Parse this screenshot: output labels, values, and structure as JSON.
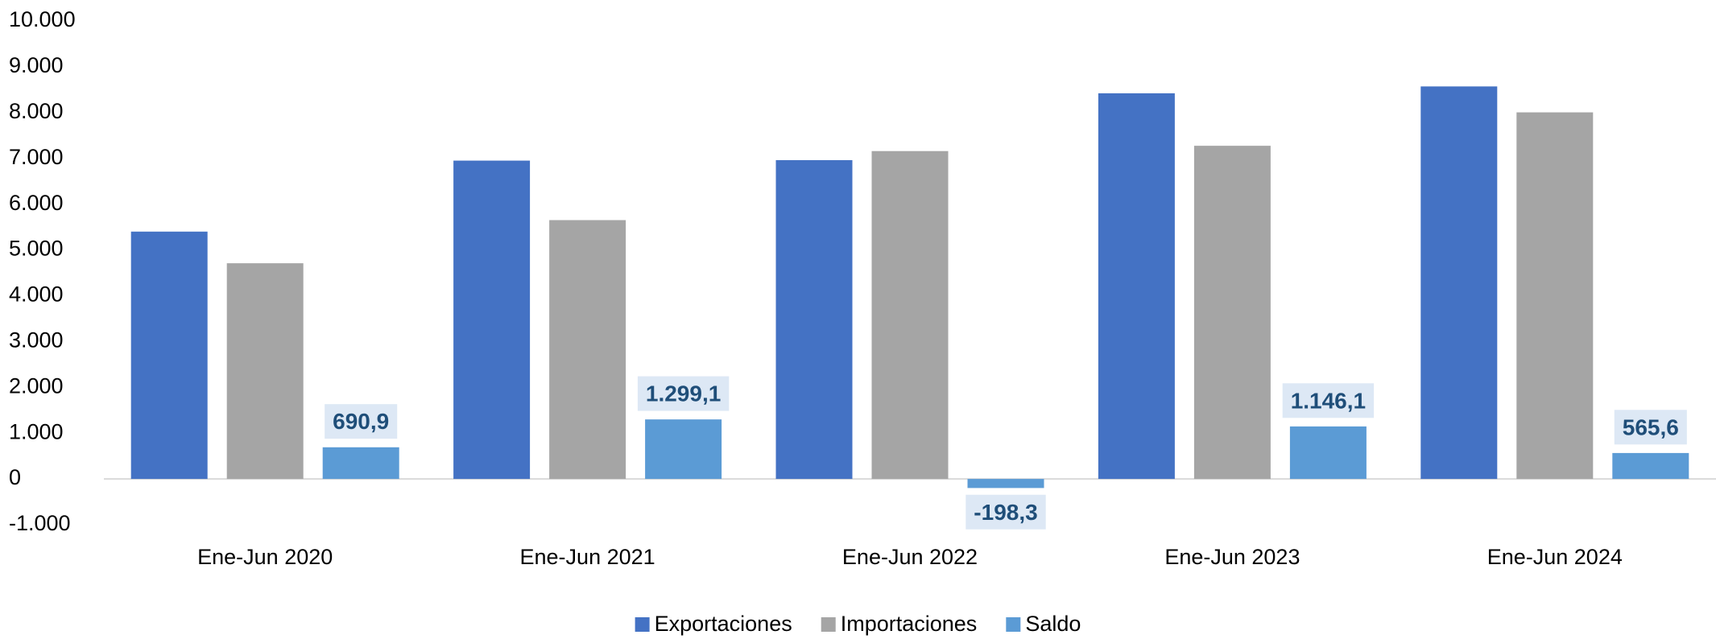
{
  "chart_data": {
    "type": "bar",
    "categories": [
      "Ene-Jun 2020",
      "Ene-Jun 2021",
      "Ene-Jun 2022",
      "Ene-Jun 2023",
      "Ene-Jun 2024"
    ],
    "series": [
      {
        "name": "Exportaciones",
        "color": "#4472c4",
        "values": [
          5400,
          6950,
          6960,
          8420,
          8570
        ]
      },
      {
        "name": "Importaciones",
        "color": "#a5a5a5",
        "values": [
          4709,
          5651,
          7158,
          7274,
          8004
        ]
      },
      {
        "name": "Saldo",
        "color": "#5b9bd5",
        "values": [
          690.9,
          1299.1,
          -198.3,
          1146.1,
          565.6
        ],
        "value_labels": [
          "690,9",
          "1.299,1",
          "-198,3",
          "1.146,1",
          "565,6"
        ]
      }
    ],
    "ylim": [
      -1000,
      10000
    ],
    "yticks": [
      {
        "value": -1000,
        "label": "-1.000"
      },
      0,
      {
        "value": 1000,
        "label": "1.000"
      },
      {
        "value": 2000,
        "label": "2.000"
      },
      {
        "value": 3000,
        "label": "3.000"
      },
      {
        "value": 4000,
        "label": "4.000"
      },
      {
        "value": 5000,
        "label": "5.000"
      },
      {
        "value": 6000,
        "label": "6.000"
      },
      {
        "value": 7000,
        "label": "7.000"
      },
      {
        "value": 8000,
        "label": "8.000"
      },
      {
        "value": 9000,
        "label": "9.000"
      },
      {
        "value": 10000,
        "label": "10.000"
      }
    ],
    "legend": "bottom"
  }
}
